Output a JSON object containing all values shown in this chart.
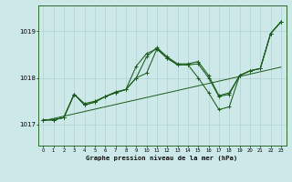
{
  "title": "Graphe pression niveau de la mer (hPa)",
  "background_color": "#cce8e8",
  "grid_color": "#aacccc",
  "line_color": "#1a5c1a",
  "xlim": [
    -0.5,
    23.5
  ],
  "ylim": [
    1016.55,
    1019.55
  ],
  "yticks": [
    1017,
    1018,
    1019
  ],
  "xticks": [
    0,
    1,
    2,
    3,
    4,
    5,
    6,
    7,
    8,
    9,
    10,
    11,
    12,
    13,
    14,
    15,
    16,
    17,
    18,
    19,
    20,
    21,
    22,
    23
  ],
  "series1": [
    1017.1,
    1017.1,
    1017.15,
    1017.65,
    1017.45,
    1017.5,
    1017.6,
    1017.7,
    1017.75,
    1018.0,
    1018.45,
    1018.65,
    1018.45,
    1018.3,
    1018.3,
    1018.35,
    1018.05,
    1017.62,
    1017.68,
    1018.05,
    1018.15,
    1018.2,
    1018.95,
    1019.2
  ],
  "series2": [
    1017.1,
    1017.1,
    1017.15,
    1017.65,
    1017.42,
    1017.48,
    1017.6,
    1017.68,
    1017.75,
    1018.25,
    1018.52,
    1018.62,
    1018.42,
    1018.28,
    1018.28,
    1018.3,
    1018.0,
    1017.6,
    1017.65,
    1018.05,
    1018.15,
    1018.2,
    1018.95,
    1019.2
  ],
  "series3": [
    1017.1,
    1017.1,
    1017.15,
    1017.65,
    1017.42,
    1017.48,
    1017.6,
    1017.68,
    1017.75,
    1018.0,
    1018.1,
    1018.62,
    1018.42,
    1018.28,
    1018.28,
    1018.0,
    1017.68,
    1017.32,
    1017.38,
    1018.05,
    1018.15,
    1018.2,
    1018.95,
    1019.2
  ],
  "trend": [
    1017.08,
    1017.13,
    1017.18,
    1017.23,
    1017.28,
    1017.33,
    1017.38,
    1017.43,
    1017.48,
    1017.53,
    1017.58,
    1017.63,
    1017.68,
    1017.73,
    1017.78,
    1017.83,
    1017.88,
    1017.93,
    1017.98,
    1018.03,
    1018.08,
    1018.13,
    1018.18,
    1018.23
  ]
}
